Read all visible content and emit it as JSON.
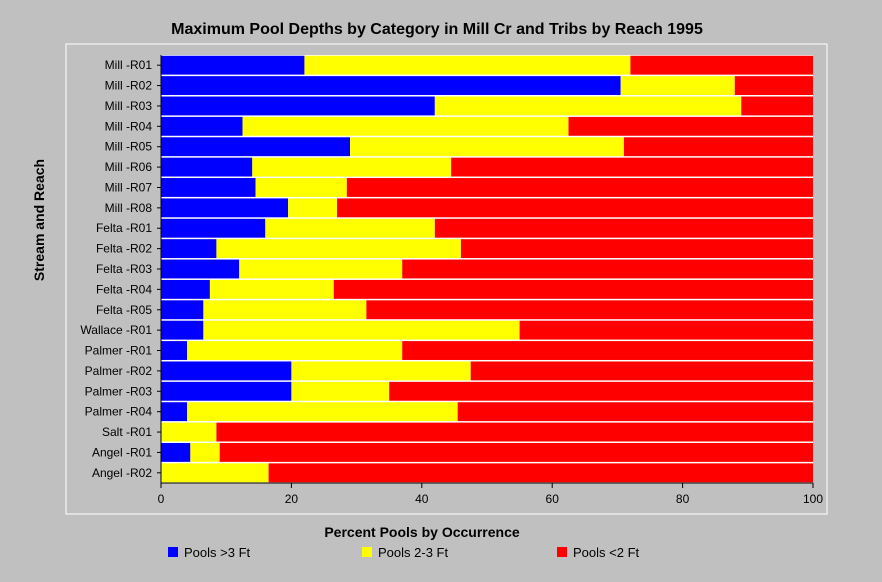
{
  "chart_data": {
    "type": "bar",
    "orientation": "horizontal",
    "stacked": true,
    "title": "Maximum Pool Depths by Category in Mill Cr and Tribs by Reach 1995",
    "xlabel": "Percent Pools by Occurrence",
    "ylabel": "Stream and Reach",
    "xlim": [
      0,
      100
    ],
    "xticks": [
      0,
      20,
      40,
      60,
      80,
      100
    ],
    "grid": false,
    "legend_position": "bottom",
    "categories": [
      "Mill -R01",
      "Mill -R02",
      "Mill -R03",
      "Mill -R04",
      "Mill -R05",
      "Mill -R06",
      "Mill -R07",
      "Mill -R08",
      "Felta -R01",
      "Felta -R02",
      "Felta -R03",
      "Felta -R04",
      "Felta -R05",
      "Wallace -R01",
      "Palmer -R01",
      "Palmer -R02",
      "Palmer -R03",
      "Palmer -R04",
      "Salt -R01",
      "Angel -R01",
      "Angel -R02"
    ],
    "series": [
      {
        "name": "Pools >3 Ft",
        "color": "#0000ff",
        "values": [
          22,
          70.5,
          42,
          12.5,
          29,
          14,
          14.5,
          19.5,
          16,
          8.5,
          12,
          7.5,
          6.5,
          6.5,
          4,
          20,
          20,
          4,
          0,
          4.5,
          0
        ]
      },
      {
        "name": "Pools 2-3 Ft",
        "color": "#ffff00",
        "values": [
          50,
          17.5,
          47,
          50,
          42,
          30.5,
          14,
          7.5,
          26,
          37.5,
          25,
          19,
          25,
          48.5,
          33,
          27.5,
          15,
          41.5,
          8.5,
          4.5,
          16.5
        ]
      },
      {
        "name": "Pools <2 Ft",
        "color": "#ff0000",
        "values": [
          28,
          12,
          11,
          37.5,
          29,
          55.5,
          71.5,
          73,
          58,
          54,
          63,
          73.5,
          68.5,
          45,
          63,
          52.5,
          65,
          54.5,
          91.5,
          91,
          83.5
        ]
      }
    ]
  }
}
